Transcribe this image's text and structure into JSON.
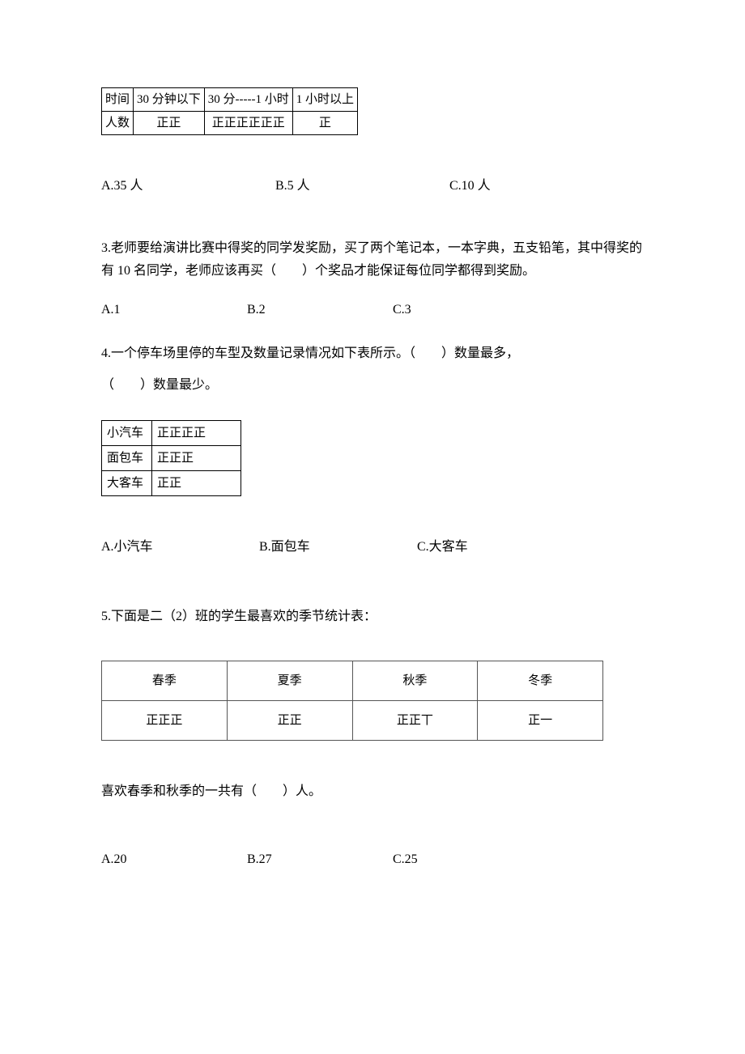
{
  "table1": {
    "r0c0": "时间",
    "r0c1": "30 分钟以下",
    "r0c2": "30 分-----1 小时",
    "r0c3": "1 小时以上",
    "r1c0": "人数",
    "r1c1": "正正",
    "r1c2": "正正正正正正",
    "r1c3": "正"
  },
  "q2_options": {
    "a": "A.35 人",
    "b": "B.5 人",
    "c": "C.10 人"
  },
  "q3": {
    "text": "3.老师要给演讲比赛中得奖的同学发奖励，买了两个笔记本，一本字典，五支铅笔，其中得奖的有 10 名同学，老师应该再买（　　）个奖品才能保证每位同学都得到奖励。",
    "a": "A.1",
    "b": "B.2",
    "c": "C.3"
  },
  "q4": {
    "line1": "4.一个停车场里停的车型及数量记录情况如下表所示。（　　）数量最多，",
    "line2": "（　　）数量最少。",
    "a": "A.小汽车",
    "b": "B.面包车",
    "c": "C.大客车"
  },
  "table4": {
    "r0c0": "小汽车",
    "r0c1": "正正正正",
    "r1c0": "面包车",
    "r1c1": "正正正",
    "r2c0": "大客车",
    "r2c1": "正正"
  },
  "q5": {
    "text": "5.下面是二（2）班的学生最喜欢的季节统计表：",
    "sub": "喜欢春季和秋季的一共有（　　）人。",
    "a": "A.20",
    "b": "B.27",
    "c": "C.25"
  },
  "table5": {
    "r0c0": "春季",
    "r0c1": "夏季",
    "r0c2": "秋季",
    "r0c3": "冬季",
    "r1c0": "正正正",
    "r1c1": "正正",
    "r1c2": "正正丅",
    "r1c3": "正一"
  }
}
